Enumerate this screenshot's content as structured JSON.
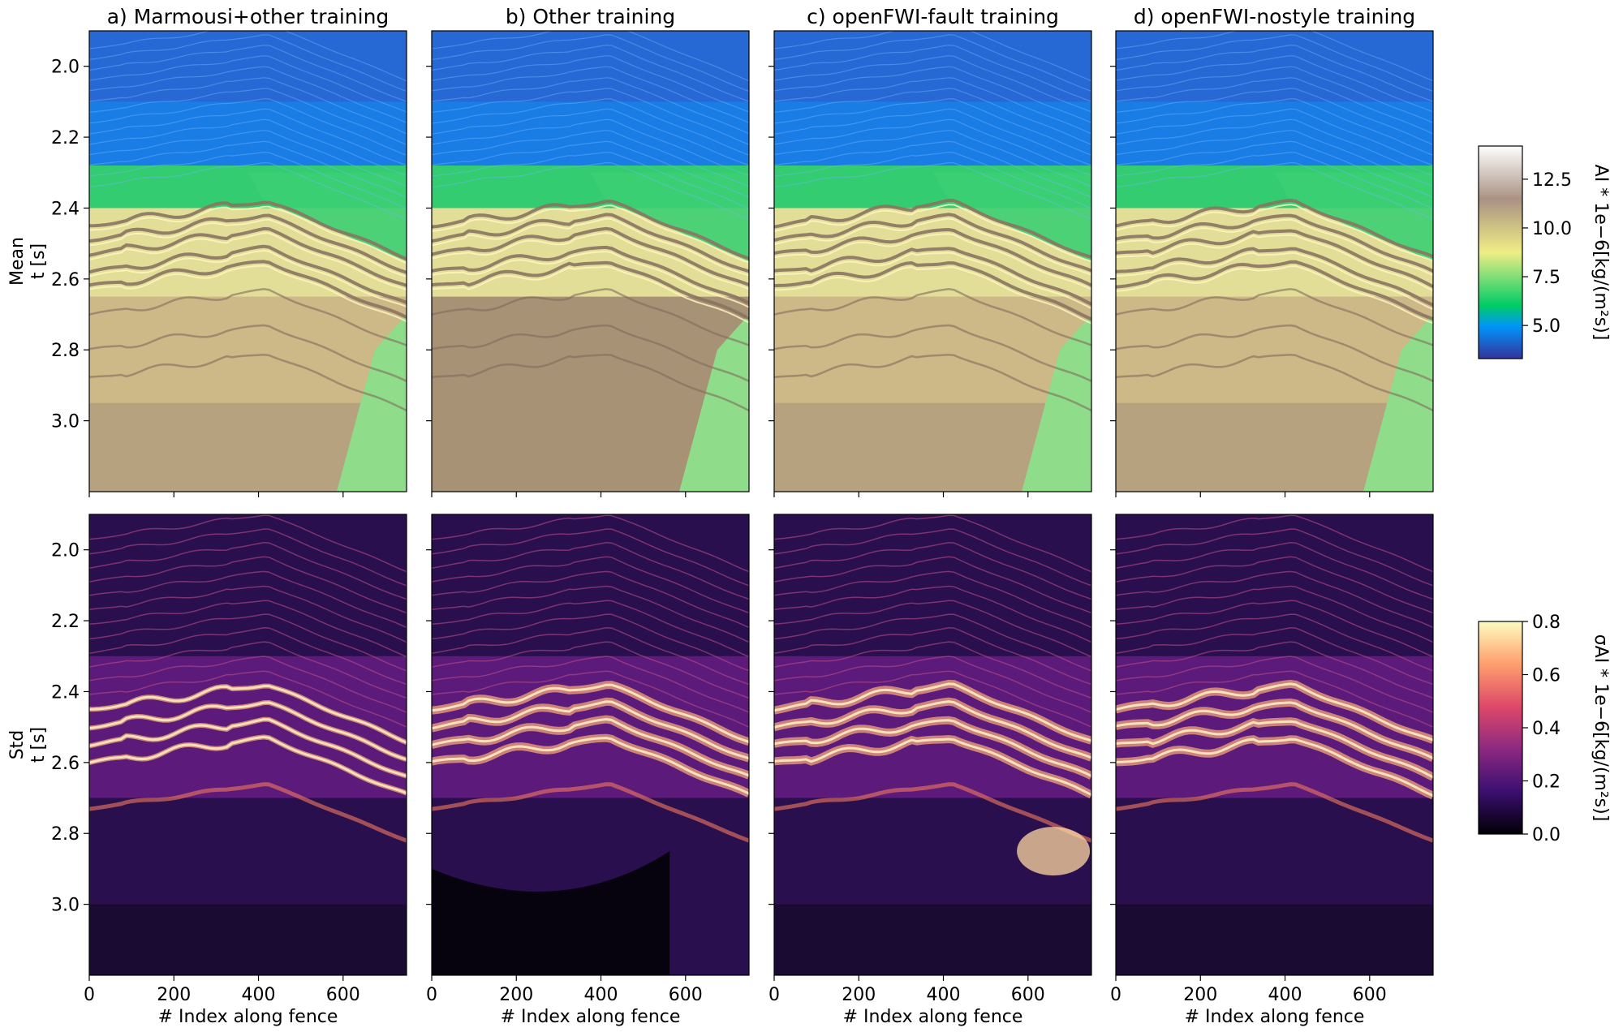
{
  "figure": {
    "panel_titles": [
      "a) Marmousi+other training",
      "b) Other training",
      "c) openFWI-fault training",
      "d) openFWI-nostyle training"
    ],
    "row_labels": {
      "mean": [
        "Mean",
        "t [s]"
      ],
      "std": [
        "Std",
        "t [s]"
      ]
    },
    "xlabel": "# Index along fence",
    "x_ticks": [
      "0",
      "200",
      "400",
      "600"
    ],
    "y_ticks": [
      "2.0",
      "2.2",
      "2.4",
      "2.6",
      "2.8",
      "3.0"
    ],
    "colorbar_mean": {
      "label": "AI * 1e−6[kg/(m²s)]",
      "ticks": [
        "5.0",
        "7.5",
        "10.0",
        "12.5"
      ],
      "colormap": "terrain",
      "colors": [
        "#333399",
        "#0094fa",
        "#00cc66",
        "#f0ed85",
        "#aa9283",
        "#fefefe"
      ]
    },
    "colorbar_std": {
      "label": "σAI * 1e−6[kg/(m²s)]",
      "ticks": [
        "0.0",
        "0.2",
        "0.4",
        "0.6",
        "0.8"
      ],
      "colormap": "magma",
      "colors": [
        "#000004",
        "#3b0f70",
        "#8c2981",
        "#de4968",
        "#fe9f6d",
        "#fcfdbf"
      ]
    }
  },
  "chart_data": [
    {
      "type": "heatmap",
      "title": "a) Marmousi+other training",
      "ylabel": "t [s]",
      "row": "Mean",
      "xlabel": "",
      "xlim": [
        0,
        750
      ],
      "ylim": [
        3.2,
        1.9
      ],
      "quantity": "AI",
      "color_range": [
        3.3,
        14.2
      ],
      "horizon_times": [
        2.45,
        2.55,
        2.6,
        2.82
      ],
      "features": [
        "water/low-AI zone 1.9-2.35 s",
        "layered high-AI horizons 2.4-2.65 s",
        "brown basement below 2.9 s",
        "green wedge at right below 2.8 s"
      ]
    },
    {
      "type": "heatmap",
      "title": "b) Other training",
      "row": "Mean",
      "xlim": [
        0,
        750
      ],
      "ylim": [
        3.2,
        1.9
      ],
      "quantity": "AI",
      "color_range": [
        3.3,
        14.2
      ]
    },
    {
      "type": "heatmap",
      "title": "c) openFWI-fault training",
      "row": "Mean",
      "xlim": [
        0,
        750
      ],
      "ylim": [
        3.2,
        1.9
      ],
      "quantity": "AI",
      "color_range": [
        3.3,
        14.2
      ]
    },
    {
      "type": "heatmap",
      "title": "d) openFWI-nostyle training",
      "row": "Mean",
      "xlim": [
        0,
        750
      ],
      "ylim": [
        3.2,
        1.9
      ],
      "quantity": "AI",
      "color_range": [
        3.3,
        14.2
      ]
    },
    {
      "type": "heatmap",
      "row": "Std",
      "ylabel": "t [s]",
      "xlabel": "# Index along fence",
      "xlim": [
        0,
        750
      ],
      "ylim": [
        3.2,
        1.9
      ],
      "quantity": "sigma_AI",
      "color_range": [
        0.0,
        0.8
      ],
      "peak_band_times": [
        2.45,
        2.65
      ]
    },
    {
      "type": "heatmap",
      "row": "Std",
      "xlabel": "# Index along fence",
      "xlim": [
        0,
        750
      ],
      "ylim": [
        3.2,
        1.9
      ],
      "quantity": "sigma_AI",
      "color_range": [
        0.0,
        0.8
      ]
    },
    {
      "type": "heatmap",
      "row": "Std",
      "xlabel": "# Index along fence",
      "xlim": [
        0,
        750
      ],
      "ylim": [
        3.2,
        1.9
      ],
      "quantity": "sigma_AI",
      "color_range": [
        0.0,
        0.8
      ]
    },
    {
      "type": "heatmap",
      "row": "Std",
      "xlabel": "# Index along fence",
      "xlim": [
        0,
        750
      ],
      "ylim": [
        3.2,
        1.9
      ],
      "quantity": "sigma_AI",
      "color_range": [
        0.0,
        0.8
      ]
    }
  ]
}
